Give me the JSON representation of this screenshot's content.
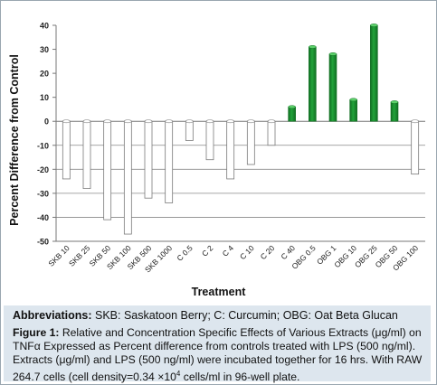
{
  "chart_data": {
    "type": "bar",
    "title": "",
    "xlabel": "Treatment",
    "ylabel": "Percent Difference from Control",
    "ylim": [
      -50,
      40
    ],
    "yticks": [
      -50,
      -40,
      -30,
      -20,
      -10,
      0,
      10,
      20,
      30,
      40
    ],
    "grid": true,
    "legend": "none",
    "categories": [
      "SKB 10",
      "SKB 25",
      "SKB 50",
      "SKB 100",
      "SKB 500",
      "SKB 1000",
      "C 0.5",
      "C 2",
      "C 4",
      "C 10",
      "C 20",
      "C 40",
      "OBG 0.5",
      "OBG 1",
      "OBG 10",
      "OBG 25",
      "OBG 50",
      "OBG 100"
    ],
    "values": [
      -24,
      -28,
      -41,
      -47,
      -32,
      -34,
      -8,
      -16,
      -24,
      -18,
      -10,
      6,
      31,
      28,
      9,
      40,
      8,
      -22
    ],
    "colors": {
      "positive": "#22a33a",
      "positive_dark": "#116e22",
      "negative": "#ffffff",
      "outline": "#7a7a7a"
    }
  },
  "caption": {
    "abbrev_label": "Abbreviations:",
    "abbrev_text": " SKB: Saskatoon Berry; C: Curcumin; OBG: Oat Beta Glucan",
    "figure_label": "Figure 1:",
    "figure_text_1": " Relative and Concentration Specific Effects of Various Extracts (μg/ml) on TNFα Expressed as Percent difference from controls treated with LPS (500 ng/ml). Extracts (μg/ml) and LPS (500 ng/ml) were incubated together for 16 hrs. With RAW 264.7 cells (cell density=0.34 ×10",
    "figure_sup": "4",
    "figure_text_2": " cells/ml in 96-well plate."
  }
}
